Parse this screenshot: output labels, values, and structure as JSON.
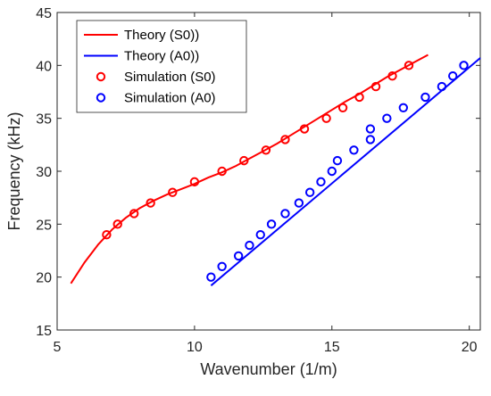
{
  "chart_data": {
    "type": "line",
    "title": "",
    "xlabel": "Wavenumber (1/m)",
    "ylabel": "Frequency (kHz)",
    "xlim": [
      5,
      20.4
    ],
    "ylim": [
      15,
      45
    ],
    "xticks": [
      5,
      10,
      15,
      20
    ],
    "yticks": [
      15,
      20,
      25,
      30,
      35,
      40,
      45
    ],
    "grid": false,
    "legend_position": "top-left",
    "series": [
      {
        "name": "Theory (S0))",
        "style": "line",
        "color": "#ff0000",
        "x": [
          5.5,
          6.0,
          6.5,
          7.0,
          7.5,
          8.0,
          8.5,
          9.0,
          9.5,
          10.0,
          10.5,
          11.0,
          11.5,
          12.0,
          12.5,
          13.0,
          13.5,
          14.0,
          14.5,
          15.0,
          15.5,
          16.0,
          16.5,
          17.0,
          17.5,
          18.0,
          18.5
        ],
        "y": [
          19.4,
          21.4,
          23.1,
          24.5,
          25.6,
          26.5,
          27.2,
          27.8,
          28.3,
          28.8,
          29.4,
          29.9,
          30.5,
          31.2,
          31.9,
          32.6,
          33.4,
          34.2,
          35.0,
          35.8,
          36.6,
          37.3,
          38.1,
          38.9,
          39.6,
          40.3,
          41.0
        ]
      },
      {
        "name": "Theory (A0))",
        "style": "line",
        "color": "#0000ff",
        "x": [
          10.6,
          20.4
        ],
        "y": [
          19.2,
          40.7
        ]
      },
      {
        "name": "Simulation (S0)",
        "style": "marker",
        "color": "#ff0000",
        "x": [
          6.8,
          7.2,
          7.8,
          8.4,
          9.2,
          10.0,
          11.0,
          11.8,
          12.6,
          13.3,
          14.0,
          14.8,
          15.4,
          16.0,
          16.6,
          17.2,
          17.8
        ],
        "y": [
          24,
          25,
          26,
          27,
          28,
          29,
          30,
          31,
          32,
          33,
          34,
          35,
          36,
          37,
          38,
          39,
          40
        ]
      },
      {
        "name": "Simulation (A0)",
        "style": "marker",
        "color": "#0000ff",
        "x": [
          10.6,
          11.0,
          11.6,
          12.0,
          12.4,
          12.8,
          13.3,
          13.8,
          14.2,
          14.6,
          15.0,
          15.2,
          15.8,
          16.4,
          16.4,
          17.0,
          17.6,
          18.4,
          19.0,
          19.4,
          19.8
        ],
        "y": [
          20,
          21,
          22,
          23,
          24,
          25,
          26,
          27,
          28,
          29,
          30,
          31,
          32,
          33,
          34,
          35,
          36,
          37,
          38,
          39,
          40
        ]
      }
    ]
  }
}
